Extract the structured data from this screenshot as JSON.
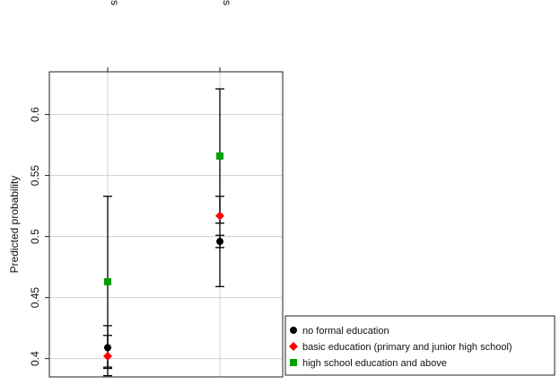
{
  "chart_data": {
    "type": "scatter",
    "categories": [
      "Rural areas",
      "Urban areas"
    ],
    "ylabel": "Predicted probability",
    "yticks": [
      "0.4",
      "0.45",
      "0.5",
      "0.55",
      "0.6"
    ],
    "ylim": [
      0.385,
      0.635
    ],
    "grid": true,
    "legend_position": "bottom-right",
    "series": [
      {
        "name": "no formal education",
        "marker": "circle",
        "color": "#000000",
        "values": [
          0.409,
          0.496
        ],
        "ci_low": [
          0.392,
          0.491
        ],
        "ci_high": [
          0.427,
          0.501
        ]
      },
      {
        "name": "basic education (primary and junior high school)",
        "marker": "diamond",
        "color": "#ff0000",
        "values": [
          0.402,
          0.517
        ],
        "ci_low": [
          0.386,
          0.511
        ],
        "ci_high": [
          0.419,
          0.533
        ]
      },
      {
        "name": "high school education and above",
        "marker": "square",
        "color": "#00a000",
        "values": [
          0.463,
          0.566
        ],
        "ci_low": [
          0.393,
          0.459
        ],
        "ci_high": [
          0.533,
          0.621
        ]
      }
    ]
  }
}
